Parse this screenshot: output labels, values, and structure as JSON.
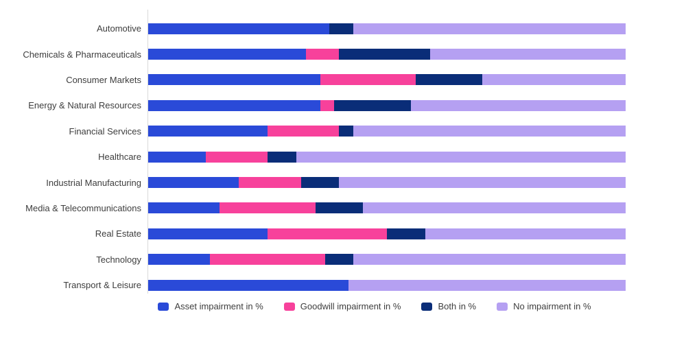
{
  "chart_data": {
    "type": "bar",
    "orientation": "horizontal",
    "stacked": true,
    "stack_total": 100,
    "xlim": [
      0,
      100
    ],
    "grid": false,
    "legend_position": "bottom",
    "title": "",
    "xlabel": "",
    "ylabel": "",
    "categories": [
      "Automotive",
      "Chemicals & Pharmaceuticals",
      "Consumer Markets",
      "Energy & Natural Resources",
      "Financial Services",
      "Healthcare",
      "Industrial Manufacturing",
      "Media & Telecommunications",
      "Real Estate",
      "Technology",
      "Transport & Leisure"
    ],
    "series": [
      {
        "name": "Asset impairment in %",
        "color": "#2a4ad8",
        "values": [
          38,
          33,
          36,
          36,
          25,
          12,
          19,
          15,
          25,
          13,
          42
        ]
      },
      {
        "name": "Goodwill impairment in %",
        "color": "#f7419b",
        "values": [
          0,
          7,
          20,
          3,
          15,
          13,
          13,
          20,
          25,
          24,
          0
        ]
      },
      {
        "name": "Both in %",
        "color": "#0a2d78",
        "values": [
          5,
          19,
          14,
          16,
          3,
          6,
          8,
          10,
          8,
          6,
          0
        ]
      },
      {
        "name": "No impairment in %",
        "color": "#b5a0f2",
        "values": [
          57,
          41,
          30,
          45,
          57,
          69,
          60,
          55,
          42,
          57,
          58
        ]
      }
    ]
  },
  "colors": {
    "axis_line": "#d9d9d9",
    "label_text": "#3d3d3d",
    "background": "#ffffff"
  }
}
